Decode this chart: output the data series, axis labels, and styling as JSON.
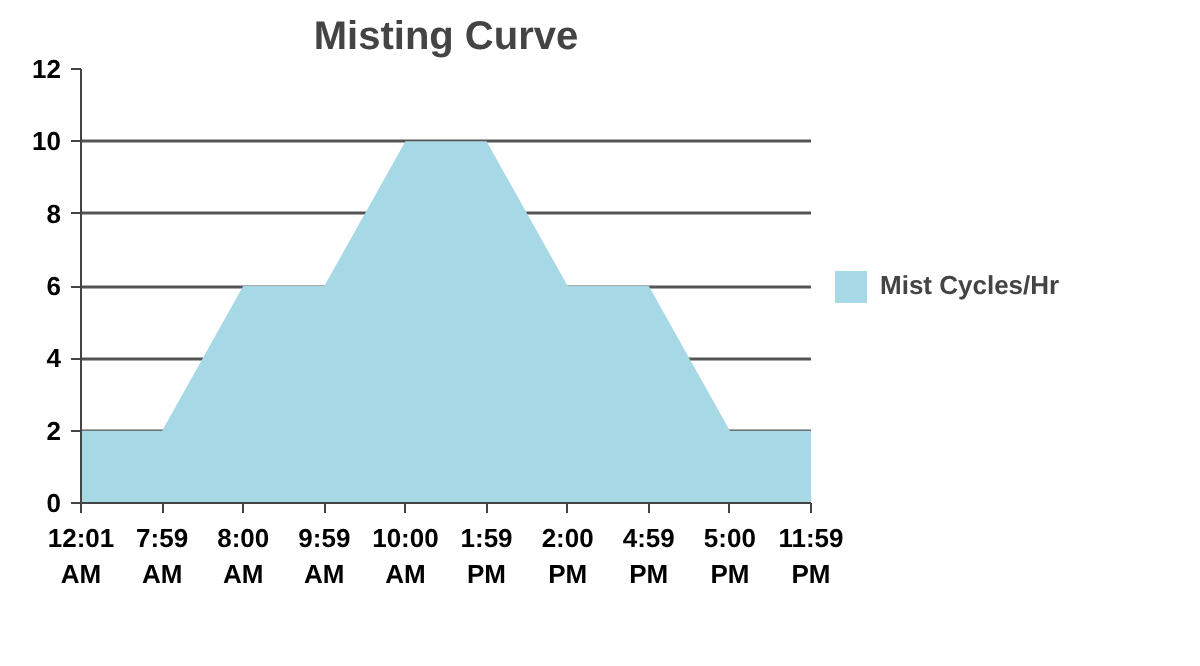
{
  "chart_data": {
    "type": "area",
    "title": "Misting Curve",
    "categories": [
      "12:01 AM",
      "7:59 AM",
      "8:00 AM",
      "9:59 AM",
      "10:00 AM",
      "1:59 PM",
      "2:00 PM",
      "4:59 PM",
      "5:00 PM",
      "11:59 PM"
    ],
    "series": [
      {
        "name": "Mist Cycles/Hr",
        "color": "#a6d8e6",
        "values": [
          2,
          2,
          6,
          6,
          10,
          10,
          6,
          6,
          2,
          2
        ]
      }
    ],
    "ylim": [
      0,
      12
    ],
    "yticks": [
      0,
      2,
      4,
      6,
      8,
      10,
      12
    ],
    "grid": "y",
    "legend": "right"
  }
}
